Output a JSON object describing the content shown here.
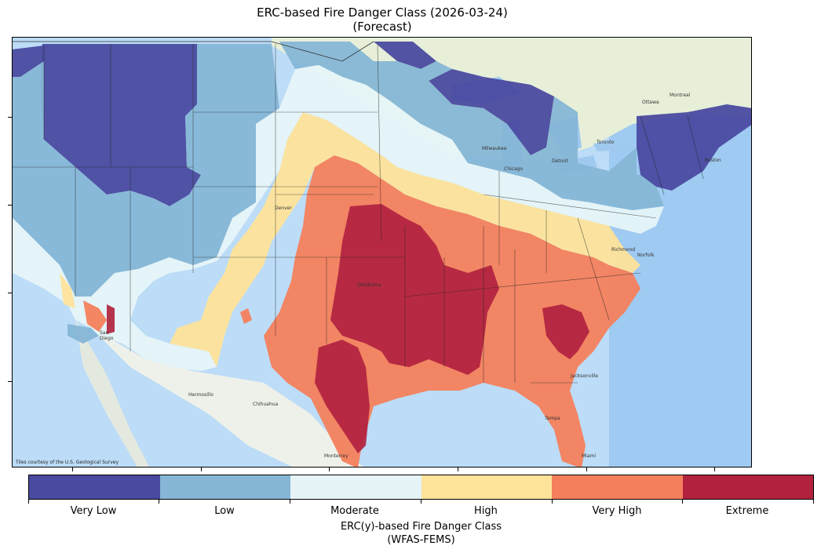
{
  "title": {
    "line1": "ERC-based Fire Danger Class (2026-03-24)",
    "line2": "(Forecast)"
  },
  "map": {
    "credit": "Tiles courtesy of the U.S. Geological Survey",
    "place_labels": [
      "Ottawa",
      "Montreal",
      "Toronto",
      "Chicago",
      "Milwaukee",
      "Detroit",
      "Boston",
      "Denver",
      "Oklahoma",
      "Chihuahua",
      "Hermosillo",
      "Monterrey",
      "Jacksonville",
      "Tampa",
      "Miami",
      "Norfolk",
      "Richmond",
      "San Diego"
    ]
  },
  "legend": {
    "title_line1": "ERC(y)-based Fire Danger Class",
    "title_line2": "(WFAS-FEMS)",
    "classes": [
      {
        "label": "Very Low",
        "color": "#4a4aa0"
      },
      {
        "label": "Low",
        "color": "#86b6d6"
      },
      {
        "label": "Moderate",
        "color": "#e6f4f8"
      },
      {
        "label": "High",
        "color": "#fee39a"
      },
      {
        "label": "Very High",
        "color": "#f47f5c"
      },
      {
        "label": "Extreme",
        "color": "#b2223f"
      }
    ]
  }
}
